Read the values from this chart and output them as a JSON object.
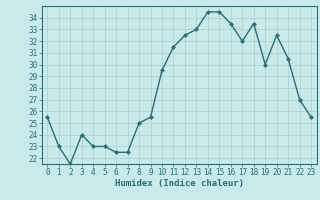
{
  "x": [
    0,
    1,
    2,
    3,
    4,
    5,
    6,
    7,
    8,
    9,
    10,
    11,
    12,
    13,
    14,
    15,
    16,
    17,
    18,
    19,
    20,
    21,
    22,
    23
  ],
  "y": [
    25.5,
    23.0,
    21.5,
    24.0,
    23.0,
    23.0,
    22.5,
    22.5,
    25.0,
    25.5,
    29.5,
    31.5,
    32.5,
    33.0,
    34.5,
    34.5,
    33.5,
    32.0,
    33.5,
    30.0,
    32.5,
    30.5,
    27.0,
    25.5
  ],
  "line_color": "#2d6e6e",
  "marker": "D",
  "marker_size": 2,
  "bg_color": "#c8eaea",
  "grid_color": "#a8d0d0",
  "xlabel": "Humidex (Indice chaleur)",
  "xlim": [
    -0.5,
    23.5
  ],
  "ylim": [
    21.5,
    35.0
  ],
  "yticks": [
    22,
    23,
    24,
    25,
    26,
    27,
    28,
    29,
    30,
    31,
    32,
    33,
    34
  ],
  "xticks": [
    0,
    1,
    2,
    3,
    4,
    5,
    6,
    7,
    8,
    9,
    10,
    11,
    12,
    13,
    14,
    15,
    16,
    17,
    18,
    19,
    20,
    21,
    22,
    23
  ],
  "tick_fontsize": 5.5,
  "xlabel_fontsize": 6.5,
  "line_width": 1.0
}
